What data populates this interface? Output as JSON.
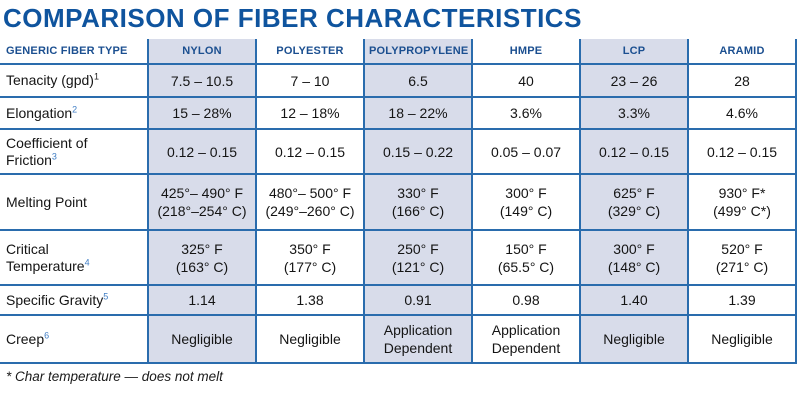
{
  "title": "COMPARISON OF FIBER CHARACTERISTICS",
  "footnote": "* Char temperature — does not melt",
  "colors": {
    "title_blue": "#0f549e",
    "border_blue": "#2a6cad",
    "header_text_blue": "#1b4f90",
    "shaded_cell": "#d8dcea",
    "superscript_blue": "#3f7dc4"
  },
  "table": {
    "header": [
      "GENERIC FIBER TYPE",
      "NYLON",
      "POLYESTER",
      "POLYPROPYLENE",
      "HMPE",
      "LCP",
      "ARAMID"
    ],
    "rows": [
      {
        "label": "Tenacity (gpd)",
        "sup": "1",
        "values": [
          "7.5 – 10.5",
          "7 – 10",
          "6.5",
          "40",
          "23 – 26",
          "28"
        ]
      },
      {
        "label": "Elongation",
        "sup": "2",
        "values": [
          "15 – 28%",
          "12 – 18%",
          "18 – 22%",
          "3.6%",
          "3.3%",
          "4.6%"
        ]
      },
      {
        "label": "Coefficient of\nFriction",
        "sup": "3",
        "values": [
          "0.12 – 0.15",
          "0.12 – 0.15",
          "0.15 – 0.22",
          "0.05 – 0.07",
          "0.12 – 0.15",
          "0.12 – 0.15"
        ]
      },
      {
        "label": "Melting Point",
        "sup": "",
        "values": [
          "425°– 490° F\n(218°–254° C)",
          "480°– 500° F\n(249°–260° C)",
          "330° F\n(166° C)",
          "300° F\n(149° C)",
          "625° F\n(329° C)",
          "930° F*\n(499° C*)"
        ]
      },
      {
        "label": "Critical\nTemperature",
        "sup": "4",
        "values": [
          "325° F\n(163° C)",
          "350° F\n(177° C)",
          "250° F\n(121° C)",
          "150° F\n(65.5° C)",
          "300° F\n(148° C)",
          "520° F\n(271° C)"
        ]
      },
      {
        "label": "Specific Gravity",
        "sup": "5",
        "values": [
          "1.14",
          "1.38",
          "0.91",
          "0.98",
          "1.40",
          "1.39"
        ]
      },
      {
        "label": "Creep",
        "sup": "6",
        "values": [
          "Negligible",
          "Negligible",
          "Application\nDependent",
          "Application\nDependent",
          "Negligible",
          "Negligible"
        ]
      }
    ]
  }
}
